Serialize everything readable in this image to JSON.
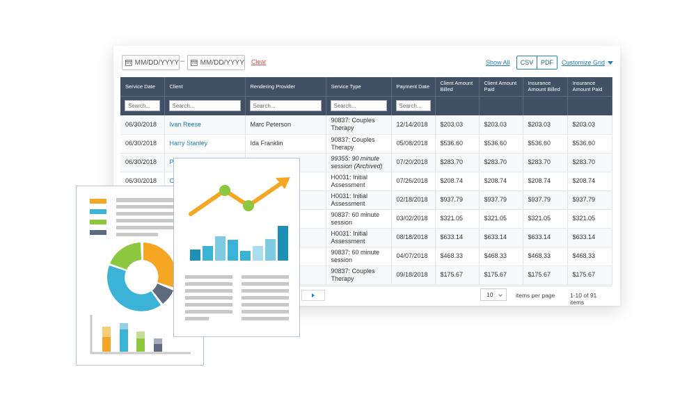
{
  "filters": {
    "date_from_placeholder": "MM/DD/YYYY",
    "date_to_placeholder": "MM/DD/YYYY",
    "separator": "–",
    "clear_label": "Clear"
  },
  "toolbar": {
    "show_all_label": "Show All",
    "csv_label": "CSV",
    "pdf_label": "PDF",
    "customize_grid_label": "Customize Grid"
  },
  "grid": {
    "columns": [
      {
        "label": "Service Date",
        "searchable": true
      },
      {
        "label": "Client",
        "searchable": true
      },
      {
        "label": "Rendering Provider",
        "searchable": true
      },
      {
        "label": "Service Type",
        "searchable": true
      },
      {
        "label": "Payment Date",
        "searchable": true
      },
      {
        "label": "Client Amount Billed",
        "searchable": false
      },
      {
        "label": "Client Amount Paid",
        "searchable": false
      },
      {
        "label": "Insurance Amount Billed",
        "searchable": false
      },
      {
        "label": "Insurance Amount Paid",
        "searchable": false
      }
    ],
    "search_placeholder": "Search...",
    "rows": [
      {
        "service_date": "06/30/2018",
        "client": "Ivan Reese",
        "provider": "Marc Peterson",
        "service_type": "90837: Couples Therapy",
        "service_italic": false,
        "payment_date": "12/14/2018",
        "client_billed": "$203.03",
        "client_paid": "$203.03",
        "ins_billed": "$203.03",
        "ins_paid": "$203.03"
      },
      {
        "service_date": "06/30/2018",
        "client": "Harry Stanley",
        "provider": "Ida Franklin",
        "service_type": "90837: Couples Therapy",
        "service_italic": false,
        "payment_date": "05/08/2018",
        "client_billed": "$536.60",
        "client_paid": "$536.60",
        "ins_billed": "$536.60",
        "ins_paid": "$536.60"
      },
      {
        "service_date": "06/30/2018",
        "client": "P",
        "provider": "",
        "service_type": "99355: 90 minute session (Archived)",
        "service_italic": true,
        "payment_date": "07/20/2018",
        "client_billed": "$283.70",
        "client_paid": "$283.70",
        "ins_billed": "$283.70",
        "ins_paid": "$283.70"
      },
      {
        "service_date": "06/30/2018",
        "client": "C",
        "provider": "",
        "service_type": "H0031: Initial Assessment",
        "service_italic": false,
        "payment_date": "07/26/2018",
        "client_billed": "$208.74",
        "client_paid": "$208.74",
        "ins_billed": "$208.74",
        "ins_paid": "$208.74"
      },
      {
        "service_date": "",
        "client": "",
        "provider": "",
        "service_type": "H0031: Initial Assessment",
        "service_italic": false,
        "payment_date": "02/18/2018",
        "client_billed": "$937.79",
        "client_paid": "$937.79",
        "ins_billed": "$937.79",
        "ins_paid": "$937.79"
      },
      {
        "service_date": "",
        "client": "",
        "provider": "",
        "service_type": "90837: 60 minute session",
        "service_italic": false,
        "payment_date": "03/02/2018",
        "client_billed": "$321.05",
        "client_paid": "$321.05",
        "ins_billed": "$321.05",
        "ins_paid": "$321.05"
      },
      {
        "service_date": "",
        "client": "",
        "provider": "",
        "service_type": "H0031: Initial Assessment",
        "service_italic": false,
        "payment_date": "08/18/2018",
        "client_billed": "$633.14",
        "client_paid": "$633.14",
        "ins_billed": "$633.14",
        "ins_paid": "$633.14"
      },
      {
        "service_date": "",
        "client": "",
        "provider": "",
        "service_type": "90837: 60 minute session",
        "service_italic": false,
        "payment_date": "04/07/2018",
        "client_billed": "$468.33",
        "client_paid": "$468.33",
        "ins_billed": "$468.33",
        "ins_paid": "$468.33"
      },
      {
        "service_date": "",
        "client": "",
        "provider": "",
        "service_type": "90837: Couples Therapy",
        "service_italic": false,
        "payment_date": "09/18/2018",
        "client_billed": "$175.67",
        "client_paid": "$175.67",
        "ins_billed": "$175.67",
        "ins_paid": "$175.67"
      }
    ]
  },
  "pager": {
    "page_size": "10",
    "items_per_page_label": "items per page",
    "range_label": "1-10 of 91 items"
  },
  "illustration": {
    "colors": {
      "orange": "#f5a623",
      "teal": "#3bb3d6",
      "green": "#8dc63f",
      "slate": "#5d6b7e",
      "gray": "#c8c8c8",
      "blue": "#1e8fb5",
      "light_blue": "#a9dcec"
    }
  }
}
